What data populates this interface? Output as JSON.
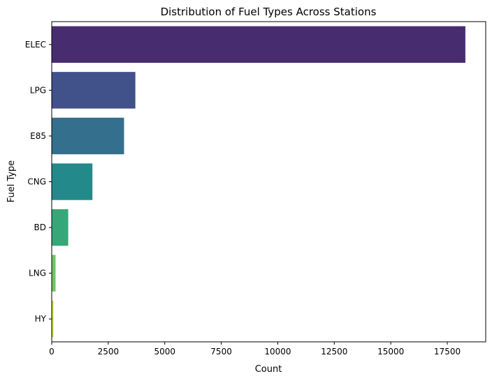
{
  "chart_data": {
    "type": "bar",
    "orientation": "horizontal",
    "title": "Distribution of Fuel Types Across Stations",
    "xlabel": "Count",
    "ylabel": "Fuel Type",
    "categories": [
      "ELEC",
      "LPG",
      "E85",
      "CNG",
      "BD",
      "LNG",
      "HY"
    ],
    "values": [
      18300,
      3700,
      3200,
      1800,
      730,
      170,
      75
    ],
    "xlim": [
      0,
      19200
    ],
    "xticks": [
      0,
      2500,
      5000,
      7500,
      10000,
      12500,
      15000,
      17500
    ],
    "grid": false,
    "colors": [
      "#482c70",
      "#41518a",
      "#346f8d",
      "#24898a",
      "#36a779",
      "#6ac860",
      "#bfdc3b"
    ]
  }
}
